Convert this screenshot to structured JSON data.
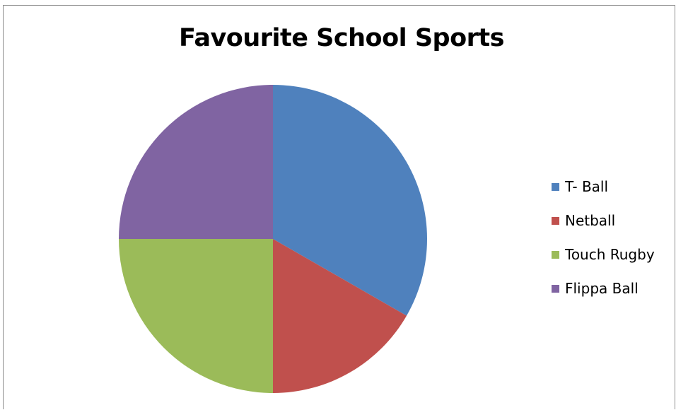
{
  "chart_data": {
    "type": "pie",
    "title": "Favourite School Sports",
    "categories": [
      "T- Ball",
      "Netball",
      "Touch Rugby",
      "Flippa Ball"
    ],
    "values": [
      33.3,
      16.7,
      25,
      25
    ],
    "colors": [
      "#4f81bd",
      "#c0504d",
      "#9bbb59",
      "#8064a2"
    ],
    "legend_position": "right",
    "start_angle": "top, clockwise"
  }
}
